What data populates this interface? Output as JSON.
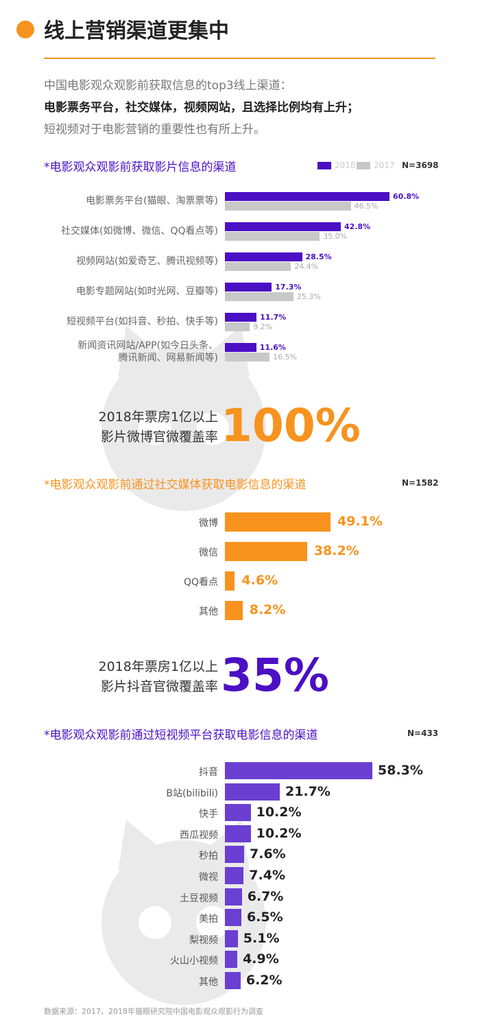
{
  "header": {
    "title": "线上营销渠道更集中",
    "intro": [
      "中国电影观众观影前获取信息的top3线上渠道：",
      "电影票务平台，社交媒体，视频网站，且选择比例均有上升；",
      "短视频对于电影营销的重要性也有所上升。"
    ]
  },
  "colors": {
    "purple": "#4b0fc4",
    "gray": "#c8c8c8",
    "orange": "#f7931e",
    "violet": "#6a3fd2"
  },
  "icons": [
    "cat-logo-watermark-icon"
  ],
  "chart_data": [
    {
      "type": "bar",
      "title": "*电影观众观影前获取影片信息的渠道",
      "n_label": "N=3698",
      "legend_position": "top-right",
      "categories": [
        [
          "电影票务平台(猫眼、淘票票等)"
        ],
        [
          "社交媒体(如微博、微信、QQ看点等)"
        ],
        [
          "视频网站(如爱奇艺、腾讯视频等)"
        ],
        [
          "电影专题网站(如时光网、豆瓣等)"
        ],
        [
          "短视频平台(如抖音、秒拍、快手等)"
        ],
        [
          "新闻资讯网站/APP(如今日头条、",
          "腾讯新闻、网易新闻等)"
        ]
      ],
      "series": [
        {
          "name": "2018",
          "values": [
            60.8,
            42.8,
            28.5,
            17.3,
            11.7,
            11.6
          ],
          "labels": [
            "60.8%",
            "42.8%",
            "28.5%",
            "17.3%",
            "11.7%",
            "11.6%"
          ]
        },
        {
          "name": "2017",
          "values": [
            46.5,
            35.0,
            24.4,
            25.3,
            9.2,
            16.5
          ],
          "labels": [
            "46.5%",
            "35.0%",
            "24.4%",
            "25.3%",
            "9.2%",
            "16.5%"
          ]
        }
      ]
    },
    {
      "type": "bar",
      "title": "*电影观众观影前通过社交媒体获取电影信息的渠道",
      "n_label": "N=1582",
      "categories": [
        "微博",
        "微信",
        "QQ看点",
        "其他"
      ],
      "values": [
        49.1,
        38.2,
        4.6,
        8.2
      ],
      "labels": [
        "49.1%",
        "38.2%",
        "4.6%",
        "8.2%"
      ]
    },
    {
      "type": "bar",
      "title": "*电影观众观影前通过短视频平台获取电影信息的渠道",
      "n_label": "N=433",
      "categories": [
        "抖音",
        "B站(bilibili)",
        "快手",
        "西瓜视频",
        "秒拍",
        "微视",
        "土豆视频",
        "美拍",
        "梨视频",
        "火山小视频",
        "其他"
      ],
      "values": [
        58.3,
        21.7,
        10.2,
        10.2,
        7.6,
        7.4,
        6.7,
        6.5,
        5.1,
        4.9,
        6.2
      ],
      "labels": [
        "58.3%",
        "21.7%",
        "10.2%",
        "10.2%",
        "7.6%",
        "7.4%",
        "6.7%",
        "6.5%",
        "5.1%",
        "4.9%",
        "6.2%"
      ]
    }
  ],
  "callouts": [
    {
      "lines": [
        "2018年票房1亿以上",
        "影片微博官微覆盖率"
      ],
      "value": "100%"
    },
    {
      "lines": [
        "2018年票房1亿以上",
        "影片抖音官微覆盖率"
      ],
      "value": "35%"
    }
  ],
  "source": "数据来源：2017、2018年猫眼研究院中国电影观众观影行为调查"
}
